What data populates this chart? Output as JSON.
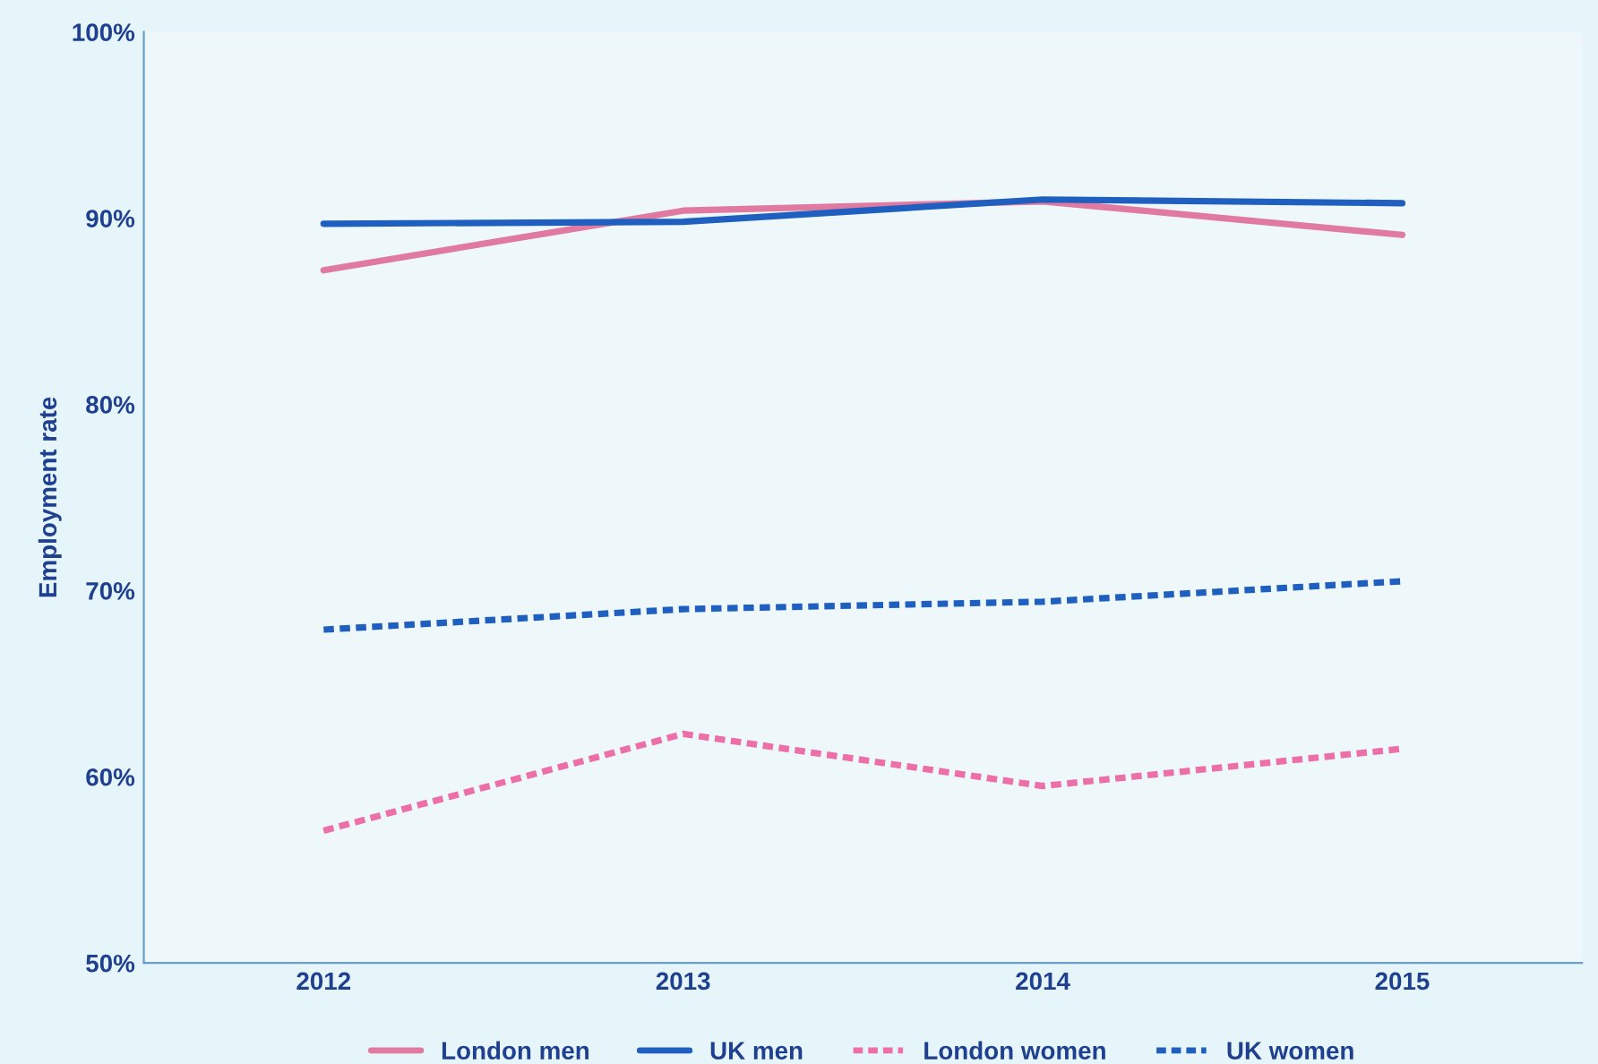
{
  "chart_data": {
    "type": "line",
    "ylabel": "Employment rate",
    "categories": [
      "2012",
      "2013",
      "2014",
      "2015"
    ],
    "series": [
      {
        "name": "London men",
        "color": "#e07aa0",
        "line_style": "solid",
        "values": [
          87.2,
          90.4,
          90.9,
          89.1
        ]
      },
      {
        "name": "UK men",
        "color": "#1f5fbf",
        "line_style": "solid",
        "values": [
          89.7,
          89.8,
          91.0,
          90.8
        ]
      },
      {
        "name": "London women",
        "color": "#ec6fa8",
        "line_style": "dashed",
        "values": [
          57.1,
          62.3,
          59.5,
          61.5
        ]
      },
      {
        "name": "UK women",
        "color": "#1f5fbf",
        "line_style": "dashed",
        "values": [
          67.9,
          69.0,
          69.4,
          70.5
        ]
      }
    ],
    "ylim": [
      50,
      100
    ],
    "yticks": [
      {
        "value": 50,
        "label": "50%"
      },
      {
        "value": 60,
        "label": "60%"
      },
      {
        "value": 70,
        "label": "70%"
      },
      {
        "value": 80,
        "label": "80%"
      },
      {
        "value": 90,
        "label": "90%"
      },
      {
        "value": 100,
        "label": "100%"
      }
    ],
    "grid": false,
    "legend": "bottom",
    "marker": "none"
  }
}
